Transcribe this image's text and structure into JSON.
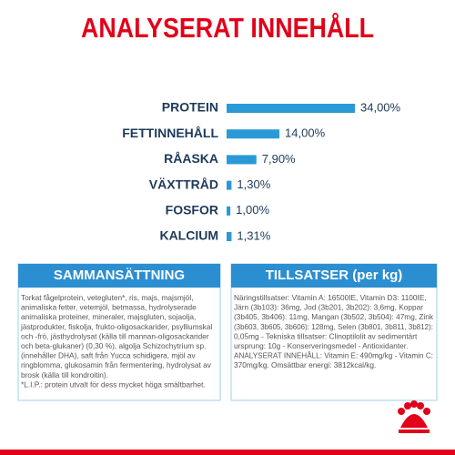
{
  "chart_data": {
    "type": "hbar",
    "title": "ANALYSERAT INNEHÅLL",
    "categories": [
      "PROTEIN",
      "FETTINNEHÅLL",
      "RÅASKA",
      "VÄXTTRÅD",
      "FOSFOR",
      "KALCIUM"
    ],
    "values": [
      34,
      14,
      7.9,
      1.3,
      1,
      1.31
    ],
    "value_labels": [
      "34,00%",
      "14,00%",
      "7,90%",
      "1,30%",
      "1,00%",
      "1,31%"
    ],
    "color": "#2a9ad6"
  },
  "composition": {
    "title": "SAMMANSÄTTNING",
    "lines": [
      "Torkat fågelprotein, vetegluten*, ris, majs, majsmjöl,",
      "animaliska fetter, vetemjöl, betmassa, hydrolyserade",
      "animaliska proteiner, mineraler, majsgluten, sojaolja,",
      "jästprodukter, fiskolja, frukto-oligosackarider, psylliumskal",
      "och -frö, jästhydrolysat (källa till mannan-oligosackarider",
      "och beta-glukaner) (0,30 %), algolja Schizochytrium sp.",
      "(innehåller DHA), saft från Yucca schidigera, mjöl av",
      "ringblomma, glukosamin från fermentering, hydrolysat av",
      "brosk (källa till kondroitin).",
      "*L.I.P.: protein utvalt för dess mycket höga smältbarhet."
    ]
  },
  "additives": {
    "title": "TILLSATSER (per kg)",
    "lines": [
      "Näringstillsatser: Vitamin A: 16500IE, Vitamin D3: 1100IE,",
      "Järn (3b103): 36mg, Jod (3b201, 3b202): 3,6mg, Koppar",
      "(3b405, 3b406): 11mg, Mangan (3b502, 3b504): 47mg, Zink",
      "(3b603, 3b605, 3b606): 128mg, Selen (3b801, 3b811, 3b812):",
      "0,05mg - Tekniska tillsatser: Clinoptilolit av sedimentärt",
      "ursprung: 10g - Konserveringsmedel - Antioxidanter.",
      "ANALYSERAT INNEHÅLL: Vitamin E: 490mg/kg - Vitamin C:",
      "370mg/kg. Omsättbar energi: 3812kcal/kg."
    ]
  }
}
